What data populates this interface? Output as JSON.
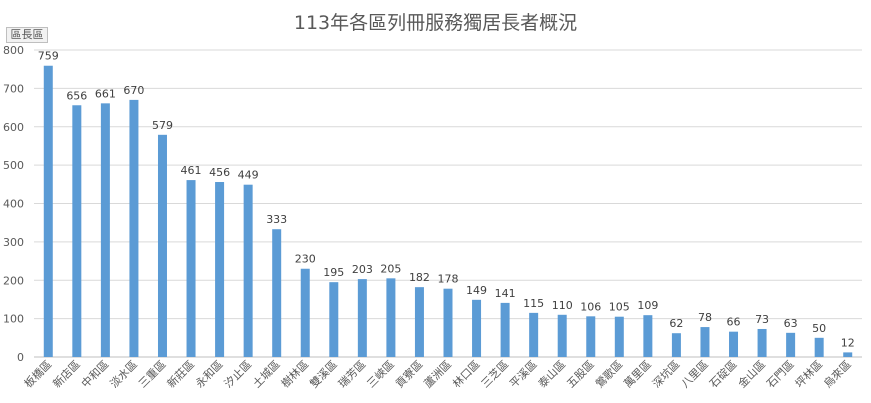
{
  "chart_data": {
    "type": "bar",
    "title": "113年各區列冊服務獨居長者概況",
    "legend_label": "區長區",
    "categories": [
      "板橋區",
      "新店區",
      "中和區",
      "淡水區",
      "三重區",
      "新莊區",
      "永和區",
      "汐止區",
      "土城區",
      "樹林區",
      "雙溪區",
      "瑞芳區",
      "三峽區",
      "貢寮區",
      "蘆洲區",
      "林口區",
      "三芝區",
      "平溪區",
      "泰山區",
      "五股區",
      "鶯歌區",
      "萬里區",
      "深坑區",
      "八里區",
      "石碇區",
      "金山區",
      "石門區",
      "坪林區",
      "烏來區"
    ],
    "values": [
      759,
      656,
      661,
      670,
      579,
      461,
      456,
      449,
      333,
      230,
      195,
      203,
      205,
      182,
      178,
      149,
      141,
      115,
      110,
      106,
      105,
      109,
      62,
      78,
      66,
      73,
      63,
      50,
      12
    ],
    "ylim": [
      0,
      800
    ],
    "yticks": [
      0,
      100,
      200,
      300,
      400,
      500,
      600,
      700,
      800
    ],
    "grid": true,
    "colors": {
      "bar": "#5b9bd5",
      "grid": "#d9d9d9",
      "text": "#404040",
      "axis_text": "#595959"
    }
  }
}
